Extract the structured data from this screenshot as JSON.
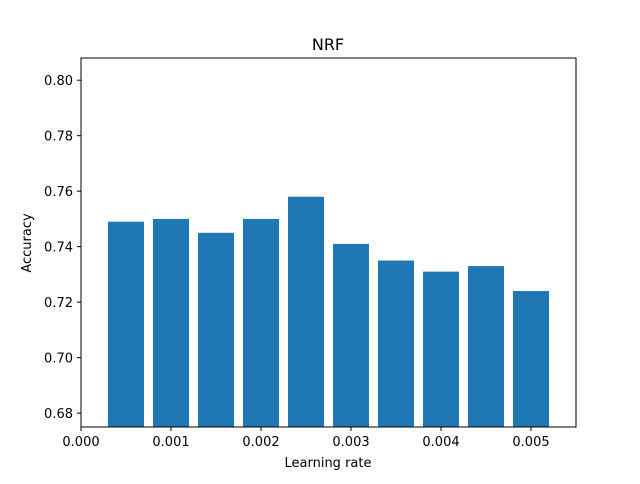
{
  "chart_data": {
    "type": "bar",
    "title": "NRF",
    "xlabel": "Learning rate",
    "ylabel": "Accuracy",
    "x": [
      0.0005,
      0.001,
      0.0015,
      0.002,
      0.0025,
      0.003,
      0.0035,
      0.004,
      0.0045,
      0.005
    ],
    "values": [
      0.749,
      0.75,
      0.745,
      0.75,
      0.758,
      0.741,
      0.735,
      0.731,
      0.733,
      0.724
    ],
    "bar_width": 0.0004,
    "xlim": [
      0.0,
      0.0055
    ],
    "ylim": [
      0.675,
      0.808
    ],
    "xticks": [
      0.0,
      0.001,
      0.002,
      0.003,
      0.004,
      0.005
    ],
    "xtick_labels": [
      "0.000",
      "0.001",
      "0.002",
      "0.003",
      "0.004",
      "0.005"
    ],
    "yticks": [
      0.68,
      0.7,
      0.72,
      0.74,
      0.76,
      0.78,
      0.8
    ],
    "ytick_labels": [
      "0.68",
      "0.70",
      "0.72",
      "0.74",
      "0.76",
      "0.78",
      "0.80"
    ],
    "bar_color": "#1f77b4",
    "grid": false,
    "legend": "none"
  }
}
